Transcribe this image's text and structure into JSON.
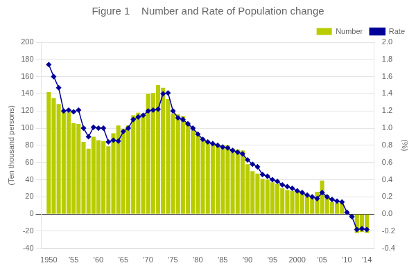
{
  "chart_data": {
    "type": "bar",
    "title": "Figure 1    Number and Rate of Population change",
    "ylabel": "(Ten thousand persons)",
    "y2label": "(%)",
    "x": [
      1950,
      1951,
      1952,
      1953,
      1954,
      1955,
      1956,
      1957,
      1958,
      1959,
      1960,
      1961,
      1962,
      1963,
      1964,
      1965,
      1966,
      1967,
      1968,
      1969,
      1970,
      1971,
      1972,
      1973,
      1974,
      1975,
      1976,
      1977,
      1978,
      1979,
      1980,
      1981,
      1982,
      1983,
      1984,
      1985,
      1986,
      1987,
      1988,
      1989,
      1990,
      1991,
      1992,
      1993,
      1994,
      1995,
      1996,
      1997,
      1998,
      1999,
      2000,
      2001,
      2002,
      2003,
      2004,
      2005,
      2006,
      2007,
      2008,
      2009,
      2010,
      2011,
      2012,
      2013,
      2014
    ],
    "xlim": [
      1948.5,
      2015.5
    ],
    "xticks": [
      1950,
      {
        "value": 1955,
        "label": "'55"
      },
      {
        "value": 1960,
        "label": "'60"
      },
      {
        "value": 1965,
        "label": "'65"
      },
      {
        "value": 1970,
        "label": "'70"
      },
      {
        "value": 1975,
        "label": "'75"
      },
      {
        "value": 1980,
        "label": "'80"
      },
      {
        "value": 1985,
        "label": "'85"
      },
      {
        "value": 1990,
        "label": "'90"
      },
      {
        "value": 1995,
        "label": "'95"
      },
      2000,
      {
        "value": 2005,
        "label": "'05"
      },
      {
        "value": 2010,
        "label": "'10"
      },
      {
        "value": 2014,
        "label": "'14"
      }
    ],
    "ylim": [
      -40,
      200
    ],
    "yticks": [
      -40,
      -20,
      0,
      20,
      40,
      60,
      80,
      100,
      120,
      140,
      160,
      180,
      200
    ],
    "y2lim": [
      -0.4,
      2.0
    ],
    "y2ticks": [
      -0.4,
      -0.2,
      {
        "value": 0.0,
        "label": "0.0"
      },
      0.2,
      0.4,
      0.6,
      0.8,
      {
        "value": 1.0,
        "label": "1.0"
      },
      1.2,
      1.4,
      1.6,
      1.8,
      {
        "value": 2.0,
        "label": "2.0"
      }
    ],
    "grid": true,
    "legend": "upper right",
    "series": [
      {
        "name": "Number",
        "type": "bar",
        "color": "#b8cc00",
        "values": [
          142,
          135,
          128,
          120,
          119,
          106,
          105,
          84,
          76,
          90,
          86,
          85,
          79,
          94,
          103,
          99,
          103,
          115,
          118,
          116,
          140,
          141,
          150,
          147,
          134,
          117,
          116,
          114,
          107,
          100,
          91,
          87,
          84,
          83,
          81,
          80,
          80,
          76,
          75,
          74,
          58,
          50,
          47,
          41,
          40,
          37,
          35,
          30,
          28,
          27,
          26,
          25,
          20,
          19,
          26,
          39,
          22,
          14,
          13,
          13,
          0,
          -5,
          -22,
          -21,
          -22
        ]
      },
      {
        "name": "Rate",
        "type": "line",
        "axis": "y2",
        "color": "#000099",
        "marker": "diamond",
        "line_style": "solid",
        "values": [
          1.74,
          1.6,
          1.47,
          1.2,
          1.21,
          1.19,
          1.21,
          1.0,
          0.9,
          1.01,
          1.0,
          1.0,
          0.84,
          0.86,
          0.85,
          0.96,
          1.0,
          1.1,
          1.13,
          1.15,
          1.2,
          1.21,
          1.22,
          1.4,
          1.41,
          1.2,
          1.12,
          1.1,
          1.05,
          1.0,
          0.93,
          0.87,
          0.84,
          0.82,
          0.8,
          0.78,
          0.77,
          0.74,
          0.72,
          0.7,
          0.63,
          0.58,
          0.55,
          0.46,
          0.44,
          0.4,
          0.38,
          0.34,
          0.32,
          0.3,
          0.27,
          0.25,
          0.22,
          0.2,
          0.18,
          0.25,
          0.2,
          0.17,
          0.15,
          0.14,
          0.02,
          -0.03,
          -0.18,
          -0.17,
          -0.18
        ]
      }
    ]
  }
}
